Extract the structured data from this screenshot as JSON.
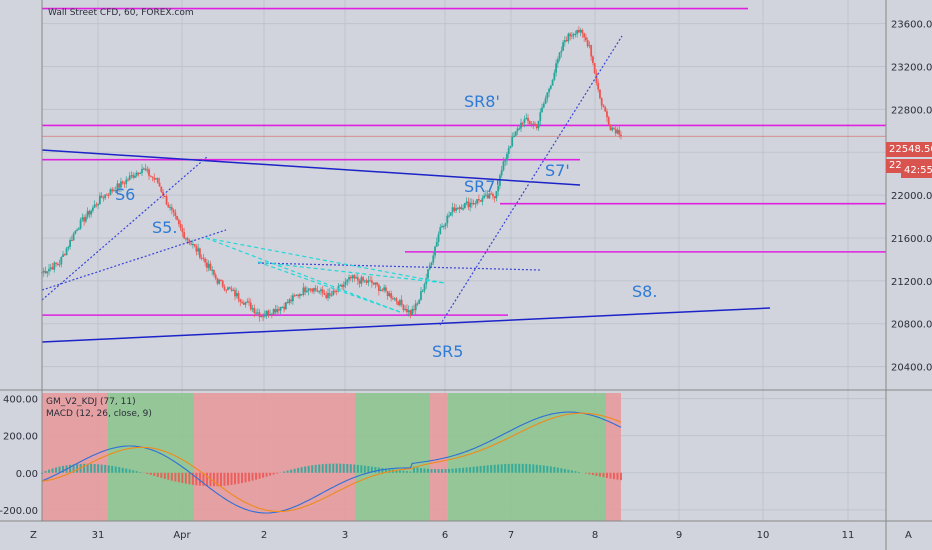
{
  "header": {
    "title": "Wall Street CFD, 60, FOREX.com"
  },
  "price_badges": {
    "last": "22548.50",
    "countdown": "42:55",
    "partial_hidden": "22"
  },
  "indicators": {
    "line1": "GM_V2_KDJ (77, 11)",
    "line2": "MACD (12, 26, close, 9)"
  },
  "corners": {
    "bottom_left": "Z",
    "bottom_right": "A"
  },
  "colors": {
    "background": "#d1d4dc",
    "bull": "#26a69a",
    "bear": "#ef5350",
    "support": "#e020e0",
    "trend": "#1c23c8",
    "dotted": "#3a45d8",
    "dashed": "#20d8d8",
    "annotation": "#2e7bd6",
    "macd": "#2e6fd8",
    "signal": "#f08a1a",
    "bg_green": "#8ec48f",
    "bg_red": "#e69a9c"
  },
  "annotations": [
    "S6",
    "S5.",
    "SR8'",
    "SR7'",
    "S7'",
    "SR5",
    "S8."
  ],
  "chart_data": [
    {
      "type": "candlestick",
      "title": "Wall Street CFD, 60, FOREX.com",
      "x_ticks": [
        "31",
        "Apr",
        "2",
        "3",
        "6",
        "7",
        "8",
        "9",
        "10",
        "11"
      ],
      "y_ticks": [
        23600,
        23200,
        22800,
        22400,
        22000,
        21600,
        21200,
        20800,
        20400
      ],
      "ylim": [
        20200,
        23820
      ],
      "last_price": 22548.5,
      "waypoints": [
        [
          0,
          21280
        ],
        [
          10,
          21370
        ],
        [
          20,
          21700
        ],
        [
          34,
          21980
        ],
        [
          45,
          22100
        ],
        [
          57,
          22250
        ],
        [
          66,
          22120
        ],
        [
          72,
          21900
        ],
        [
          80,
          21650
        ],
        [
          90,
          21450
        ],
        [
          100,
          21200
        ],
        [
          112,
          21050
        ],
        [
          125,
          20880
        ],
        [
          138,
          20970
        ],
        [
          152,
          21150
        ],
        [
          164,
          21050
        ],
        [
          176,
          21220
        ],
        [
          188,
          21180
        ],
        [
          200,
          21050
        ],
        [
          210,
          20900
        ],
        [
          214,
          20980
        ],
        [
          220,
          21280
        ],
        [
          227,
          21700
        ],
        [
          235,
          21880
        ],
        [
          245,
          21930
        ],
        [
          258,
          22000
        ],
        [
          266,
          22450
        ],
        [
          274,
          22700
        ],
        [
          282,
          22650
        ],
        [
          290,
          23050
        ],
        [
          298,
          23450
        ],
        [
          305,
          23550
        ],
        [
          312,
          23400
        ],
        [
          318,
          22900
        ],
        [
          324,
          22640
        ],
        [
          330,
          22580
        ]
      ],
      "bull_color": "#26a69a",
      "bear_color": "#ef5350"
    },
    {
      "type": "line",
      "title": "MACD (12, 26, close, 9)",
      "y_ticks": [
        400,
        200,
        0,
        -200
      ],
      "ylim": [
        -260,
        430
      ],
      "series": [
        {
          "name": "GM_V2_KDJ (77, 11)",
          "type": "background-regions"
        },
        {
          "name": "MACD (12, 26, close, 9)",
          "type": "line"
        }
      ]
    }
  ]
}
